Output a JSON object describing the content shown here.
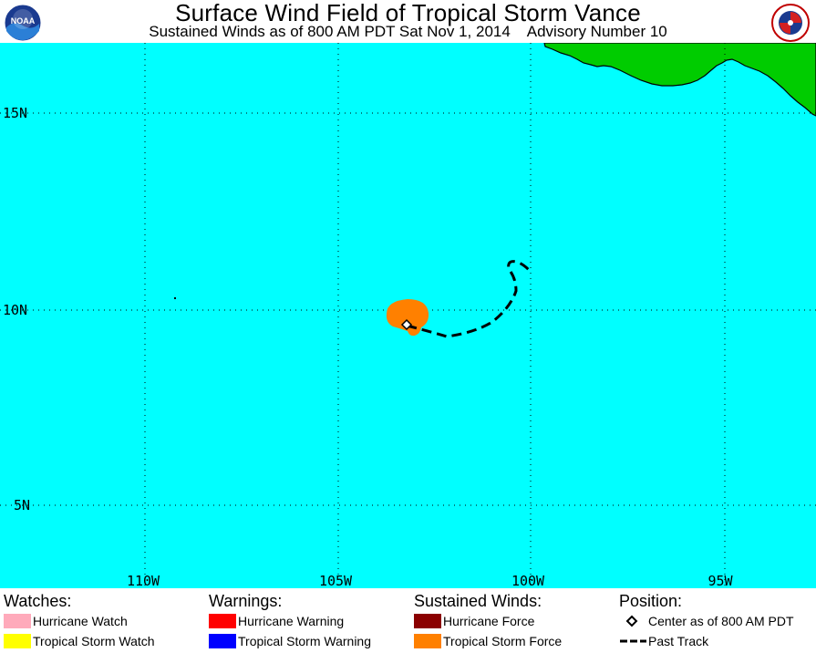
{
  "header": {
    "title": "Surface Wind Field of Tropical Storm Vance",
    "subtitle": "Sustained Winds as of 800 AM PDT Sat Nov 1, 2014    Advisory Number 10",
    "left_logo": "noaa-logo",
    "right_logo": "nws-logo",
    "left_logo_text": "NOAA",
    "right_logo_text": "NATIONAL WEATHER SERVICE"
  },
  "map": {
    "ocean_color": "#00ffff",
    "land_color": "#00cc00",
    "lat_labels": [
      "15N",
      "10N",
      "5N"
    ],
    "lon_labels": [
      "110W",
      "105W",
      "100W",
      "95W"
    ],
    "wind_field_color": "#ff8000",
    "track_color": "#000000"
  },
  "legend": {
    "watches": {
      "heading": "Watches:",
      "items": [
        {
          "label": "Hurricane Watch",
          "color": "#ffaabb"
        },
        {
          "label": "Tropical Storm Watch",
          "color": "#ffff00"
        }
      ]
    },
    "warnings": {
      "heading": "Warnings:",
      "items": [
        {
          "label": "Hurricane Warning",
          "color": "#ff0000"
        },
        {
          "label": "Tropical Storm Warning",
          "color": "#0000ff"
        }
      ]
    },
    "winds": {
      "heading": "Sustained Winds:",
      "items": [
        {
          "label": "Hurricane Force",
          "color": "#8b0000"
        },
        {
          "label": "Tropical Storm Force",
          "color": "#ff8000"
        }
      ]
    },
    "position": {
      "heading": "Position:",
      "center_label": "Center as of 800 AM PDT",
      "track_label": "Past Track"
    }
  }
}
